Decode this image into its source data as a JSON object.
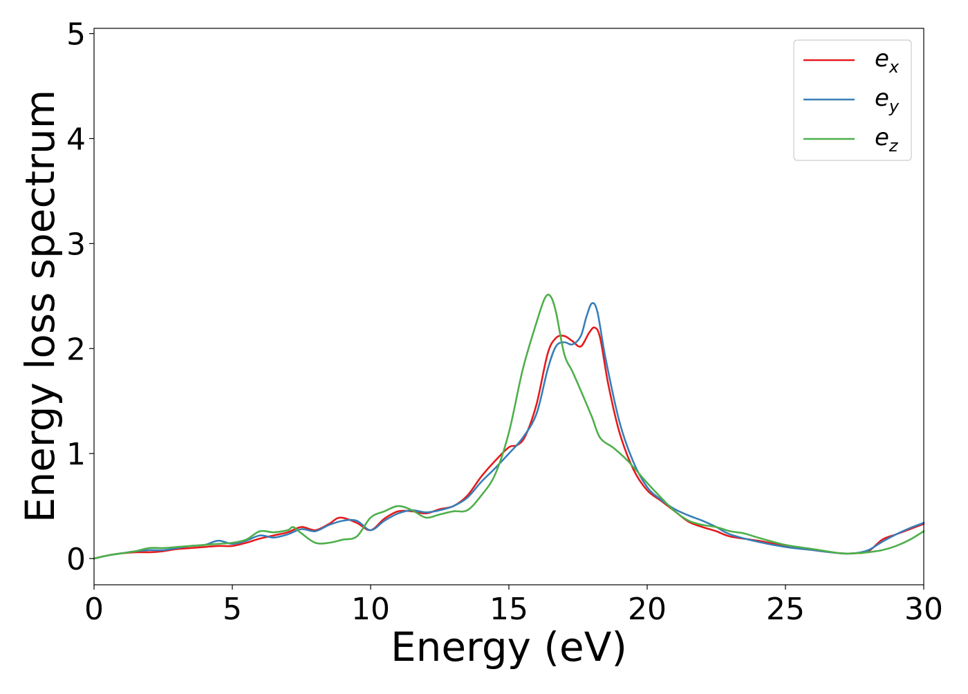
{
  "chart_data": {
    "type": "line",
    "xlabel": "Energy (eV)",
    "ylabel": "Energy loss spectrum",
    "xlim": [
      0,
      30
    ],
    "ylim": [
      -0.25,
      5.05
    ],
    "xticks": [
      0,
      5,
      10,
      15,
      20,
      25,
      30
    ],
    "yticks": [
      0,
      1,
      2,
      3,
      4,
      5
    ],
    "grid": false,
    "legend_position": "top-right",
    "series": [
      {
        "name": "e_x",
        "label_base": "e",
        "label_sub": "x",
        "color": "#e41a1c",
        "x": [
          0,
          0.5,
          1,
          1.5,
          2,
          2.5,
          3,
          3.5,
          4,
          4.5,
          5,
          5.5,
          6,
          6.5,
          7,
          7.5,
          8,
          8.5,
          8.9,
          9.5,
          10,
          10.5,
          11,
          11.5,
          12,
          12.5,
          13,
          13.5,
          14,
          14.5,
          15,
          15.3,
          15.6,
          16,
          16.4,
          16.7,
          17,
          17.3,
          17.6,
          17.9,
          18.1,
          18.3,
          18.6,
          19,
          19.5,
          20,
          20.5,
          21,
          21.5,
          22,
          22.5,
          23,
          24,
          25,
          26,
          27,
          27.5,
          28,
          28.5,
          29,
          29.5,
          30
        ],
        "y": [
          0,
          0.03,
          0.05,
          0.06,
          0.06,
          0.07,
          0.09,
          0.1,
          0.11,
          0.12,
          0.12,
          0.15,
          0.19,
          0.22,
          0.25,
          0.3,
          0.27,
          0.33,
          0.39,
          0.34,
          0.27,
          0.38,
          0.45,
          0.45,
          0.43,
          0.47,
          0.5,
          0.6,
          0.78,
          0.93,
          1.06,
          1.08,
          1.17,
          1.47,
          1.95,
          2.1,
          2.12,
          2.07,
          2.02,
          2.15,
          2.2,
          2.1,
          1.65,
          1.2,
          0.85,
          0.65,
          0.55,
          0.45,
          0.35,
          0.3,
          0.26,
          0.21,
          0.17,
          0.12,
          0.08,
          0.05,
          0.05,
          0.07,
          0.18,
          0.23,
          0.28,
          0.33
        ]
      },
      {
        "name": "e_y",
        "label_base": "e",
        "label_sub": "y",
        "color": "#377eb8",
        "x": [
          0,
          0.5,
          1,
          1.5,
          2,
          2.5,
          3,
          3.5,
          4,
          4.5,
          5,
          5.5,
          6,
          6.5,
          7,
          7.5,
          8,
          8.5,
          9,
          9.5,
          10,
          10.5,
          11,
          11.5,
          12,
          12.5,
          13,
          13.5,
          14,
          14.5,
          15,
          15.5,
          16,
          16.4,
          16.7,
          17,
          17.3,
          17.6,
          17.8,
          18,
          18.2,
          18.5,
          19,
          19.5,
          20,
          20.5,
          21,
          21.5,
          22,
          22.5,
          23,
          24,
          25,
          26,
          27,
          27.5,
          28,
          28.5,
          29,
          29.5,
          30
        ],
        "y": [
          0,
          0.03,
          0.05,
          0.07,
          0.08,
          0.08,
          0.1,
          0.12,
          0.13,
          0.17,
          0.14,
          0.17,
          0.22,
          0.2,
          0.23,
          0.28,
          0.26,
          0.32,
          0.36,
          0.36,
          0.27,
          0.36,
          0.43,
          0.46,
          0.44,
          0.46,
          0.5,
          0.58,
          0.73,
          0.86,
          1.0,
          1.15,
          1.38,
          1.8,
          2.02,
          2.06,
          2.04,
          2.12,
          2.3,
          2.43,
          2.35,
          1.9,
          1.3,
          0.92,
          0.68,
          0.56,
          0.47,
          0.41,
          0.36,
          0.3,
          0.23,
          0.16,
          0.11,
          0.08,
          0.05,
          0.05,
          0.08,
          0.16,
          0.23,
          0.29,
          0.34
        ]
      },
      {
        "name": "e_z",
        "label_base": "e",
        "label_sub": "z",
        "color": "#4daf4a",
        "x": [
          0,
          0.5,
          1,
          1.5,
          2,
          2.5,
          3,
          3.5,
          4,
          4.5,
          5,
          5.5,
          6,
          6.5,
          7,
          7.2,
          7.5,
          8,
          8.5,
          9,
          9.5,
          10,
          10.5,
          11,
          11.5,
          12,
          12.5,
          13,
          13.5,
          14,
          14.5,
          15,
          15.5,
          16,
          16.3,
          16.5,
          16.7,
          17,
          17.3,
          17.6,
          18,
          18.3,
          18.8,
          19.3,
          20,
          20.5,
          21,
          21.5,
          22,
          22.5,
          23,
          23.5,
          24,
          25,
          26,
          27,
          27.5,
          28,
          28.5,
          29,
          29.5,
          30
        ],
        "y": [
          0,
          0.03,
          0.05,
          0.07,
          0.1,
          0.1,
          0.11,
          0.12,
          0.13,
          0.14,
          0.15,
          0.18,
          0.26,
          0.25,
          0.27,
          0.3,
          0.24,
          0.15,
          0.15,
          0.18,
          0.21,
          0.39,
          0.45,
          0.5,
          0.46,
          0.39,
          0.42,
          0.45,
          0.46,
          0.6,
          0.8,
          1.2,
          1.8,
          2.25,
          2.48,
          2.5,
          2.35,
          1.95,
          1.78,
          1.6,
          1.35,
          1.15,
          1.05,
          0.93,
          0.72,
          0.58,
          0.45,
          0.36,
          0.32,
          0.3,
          0.26,
          0.24,
          0.2,
          0.13,
          0.09,
          0.05,
          0.05,
          0.06,
          0.08,
          0.12,
          0.18,
          0.26
        ]
      }
    ]
  }
}
